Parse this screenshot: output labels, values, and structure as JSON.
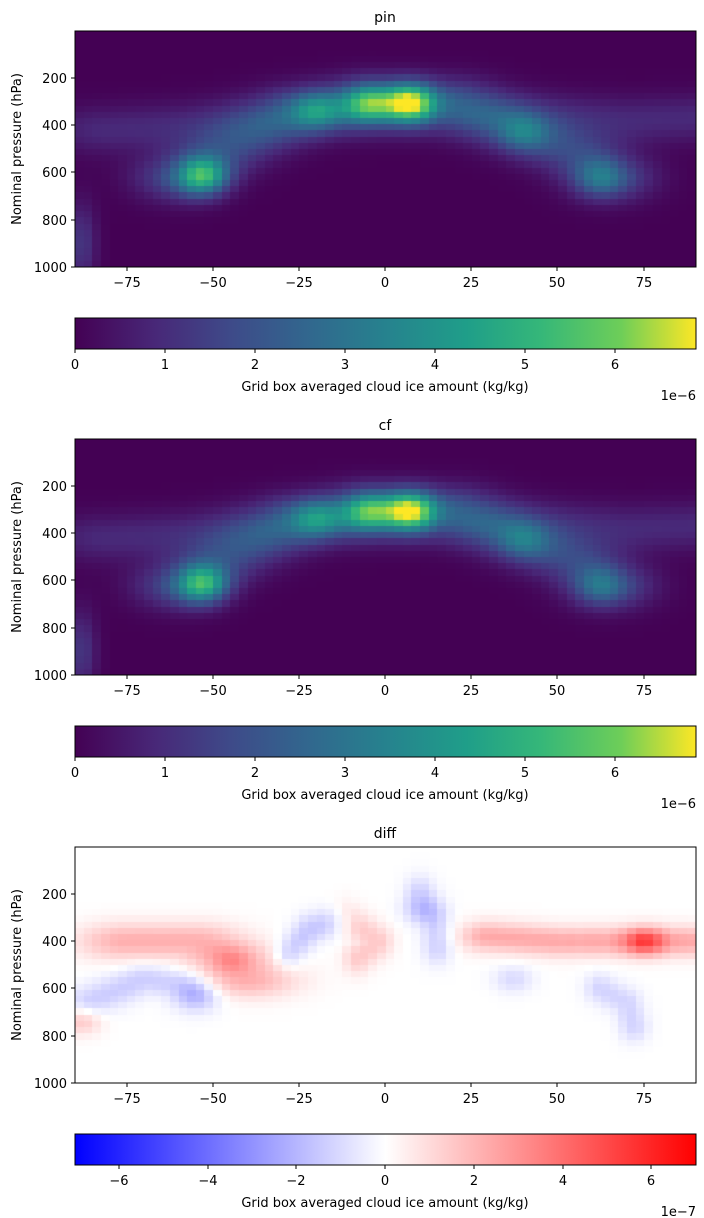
{
  "chart_data": [
    {
      "type": "heatmap",
      "title": "pin",
      "ylabel": "Nominal pressure (hPa)",
      "xlabel": "",
      "x_ticks": [
        "−75",
        "−50",
        "−25",
        "0",
        "25",
        "50",
        "75"
      ],
      "y_ticks": [
        "200",
        "400",
        "600",
        "800",
        "1000"
      ],
      "xlim": [
        -90,
        90
      ],
      "ylim": [
        1000,
        0
      ],
      "colormap": "viridis",
      "colorbar": {
        "label": "Grid box averaged cloud ice amount (kg/kg)",
        "ticks": [
          "0",
          "1",
          "2",
          "3",
          "4",
          "5",
          "6"
        ],
        "range": [
          0,
          6.9
        ],
        "multiplier": "1e−6"
      },
      "features": [
        {
          "lat": 7,
          "p": 305,
          "value": 6.8
        },
        {
          "lat": -5,
          "p": 310,
          "value": 4.9
        },
        {
          "lat": -53,
          "p": 615,
          "value": 5.6
        },
        {
          "lat": -20,
          "p": 340,
          "value": 2.8
        },
        {
          "lat": 40,
          "p": 430,
          "value": 2.0
        },
        {
          "lat": 62,
          "p": 620,
          "value": 2.4
        }
      ]
    },
    {
      "type": "heatmap",
      "title": "cf",
      "ylabel": "Nominal pressure (hPa)",
      "xlabel": "",
      "x_ticks": [
        "−75",
        "−50",
        "−25",
        "0",
        "25",
        "50",
        "75"
      ],
      "y_ticks": [
        "200",
        "400",
        "600",
        "800",
        "1000"
      ],
      "xlim": [
        -90,
        90
      ],
      "ylim": [
        1000,
        0
      ],
      "colormap": "viridis",
      "colorbar": {
        "label": "Grid box averaged cloud ice amount (kg/kg)",
        "ticks": [
          "0",
          "1",
          "2",
          "3",
          "4",
          "5",
          "6"
        ],
        "range": [
          0,
          6.9
        ],
        "multiplier": "1e−6"
      },
      "features": [
        {
          "lat": 7,
          "p": 305,
          "value": 6.6
        },
        {
          "lat": -5,
          "p": 310,
          "value": 4.7
        },
        {
          "lat": -53,
          "p": 615,
          "value": 5.5
        },
        {
          "lat": -20,
          "p": 340,
          "value": 2.7
        },
        {
          "lat": 40,
          "p": 430,
          "value": 1.8
        },
        {
          "lat": 62,
          "p": 620,
          "value": 2.2
        }
      ]
    },
    {
      "type": "heatmap",
      "title": "diff",
      "ylabel": "Nominal pressure (hPa)",
      "xlabel": "",
      "x_ticks": [
        "−75",
        "−50",
        "−25",
        "0",
        "25",
        "50",
        "75"
      ],
      "y_ticks": [
        "200",
        "400",
        "600",
        "800",
        "1000"
      ],
      "xlim": [
        -90,
        90
      ],
      "ylim": [
        1000,
        0
      ],
      "colormap": "bwr",
      "colorbar": {
        "label": "Grid box averaged cloud ice amount (kg/kg)",
        "ticks": [
          "−6",
          "−4",
          "−2",
          "0",
          "2",
          "4",
          "6"
        ],
        "range": [
          -7,
          7
        ],
        "multiplier": "1e−7"
      },
      "features": [
        {
          "lat": 75,
          "p": 400,
          "value": 6.5
        },
        {
          "lat": -45,
          "p": 480,
          "value": 2.5
        },
        {
          "lat": -55,
          "p": 610,
          "value": -2.5
        },
        {
          "lat": 10,
          "p": 270,
          "value": -2.0
        },
        {
          "lat": 37,
          "p": 560,
          "value": -2.0
        },
        {
          "lat": -88,
          "p": 740,
          "value": 3.0
        }
      ]
    }
  ]
}
